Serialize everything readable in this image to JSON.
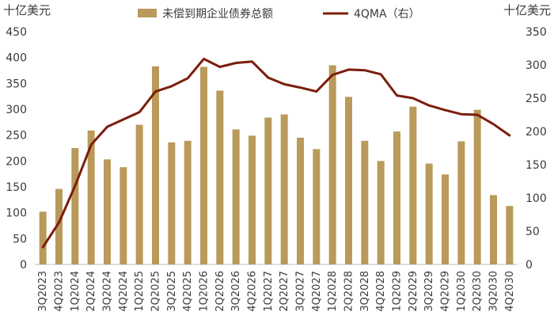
{
  "chart_data": {
    "type": "bar",
    "y_left_unit": "十亿美元",
    "y_right_unit": "十亿美元",
    "ylim_left": [
      0,
      450
    ],
    "ylim_right": [
      0,
      350
    ],
    "yticks_left": [
      0,
      50,
      100,
      150,
      200,
      250,
      300,
      350,
      400,
      450
    ],
    "yticks_right": [
      0,
      50,
      100,
      150,
      200,
      250,
      300,
      350
    ],
    "legend_position": "top",
    "grid": false,
    "categories": [
      "3Q2023",
      "4Q2023",
      "1Q2024",
      "2Q2024",
      "3Q2024",
      "4Q2024",
      "1Q2025",
      "2Q2025",
      "3Q2025",
      "4Q2025",
      "1Q2026",
      "2Q2026",
      "3Q2026",
      "4Q2026",
      "1Q2027",
      "2Q2027",
      "3Q2027",
      "4Q2027",
      "1Q2028",
      "2Q2028",
      "3Q2028",
      "4Q2028",
      "1Q2029",
      "2Q2029",
      "3Q2029",
      "4Q2029",
      "1Q2030",
      "2Q2030",
      "3Q2030",
      "4Q2030"
    ],
    "series": [
      {
        "name": "未偿到期企业债券总额",
        "type": "bar",
        "axis": "left",
        "color": "#B99A5B",
        "values": [
          102,
          146,
          225,
          259,
          203,
          188,
          270,
          383,
          236,
          239,
          382,
          336,
          261,
          249,
          284,
          290,
          245,
          223,
          385,
          324,
          239,
          200,
          257,
          305,
          195,
          174,
          238,
          299,
          134,
          113
        ]
      },
      {
        "name": "4QMA（右）",
        "type": "line",
        "axis": "right",
        "color": "#7B1E0C",
        "values": [
          26,
          63,
          118,
          180,
          207,
          218,
          229,
          260,
          268,
          280,
          309,
          297,
          303,
          305,
          281,
          271,
          266,
          260,
          285,
          293,
          292,
          286,
          254,
          250,
          239,
          232,
          226,
          225,
          211,
          194
        ]
      }
    ]
  }
}
